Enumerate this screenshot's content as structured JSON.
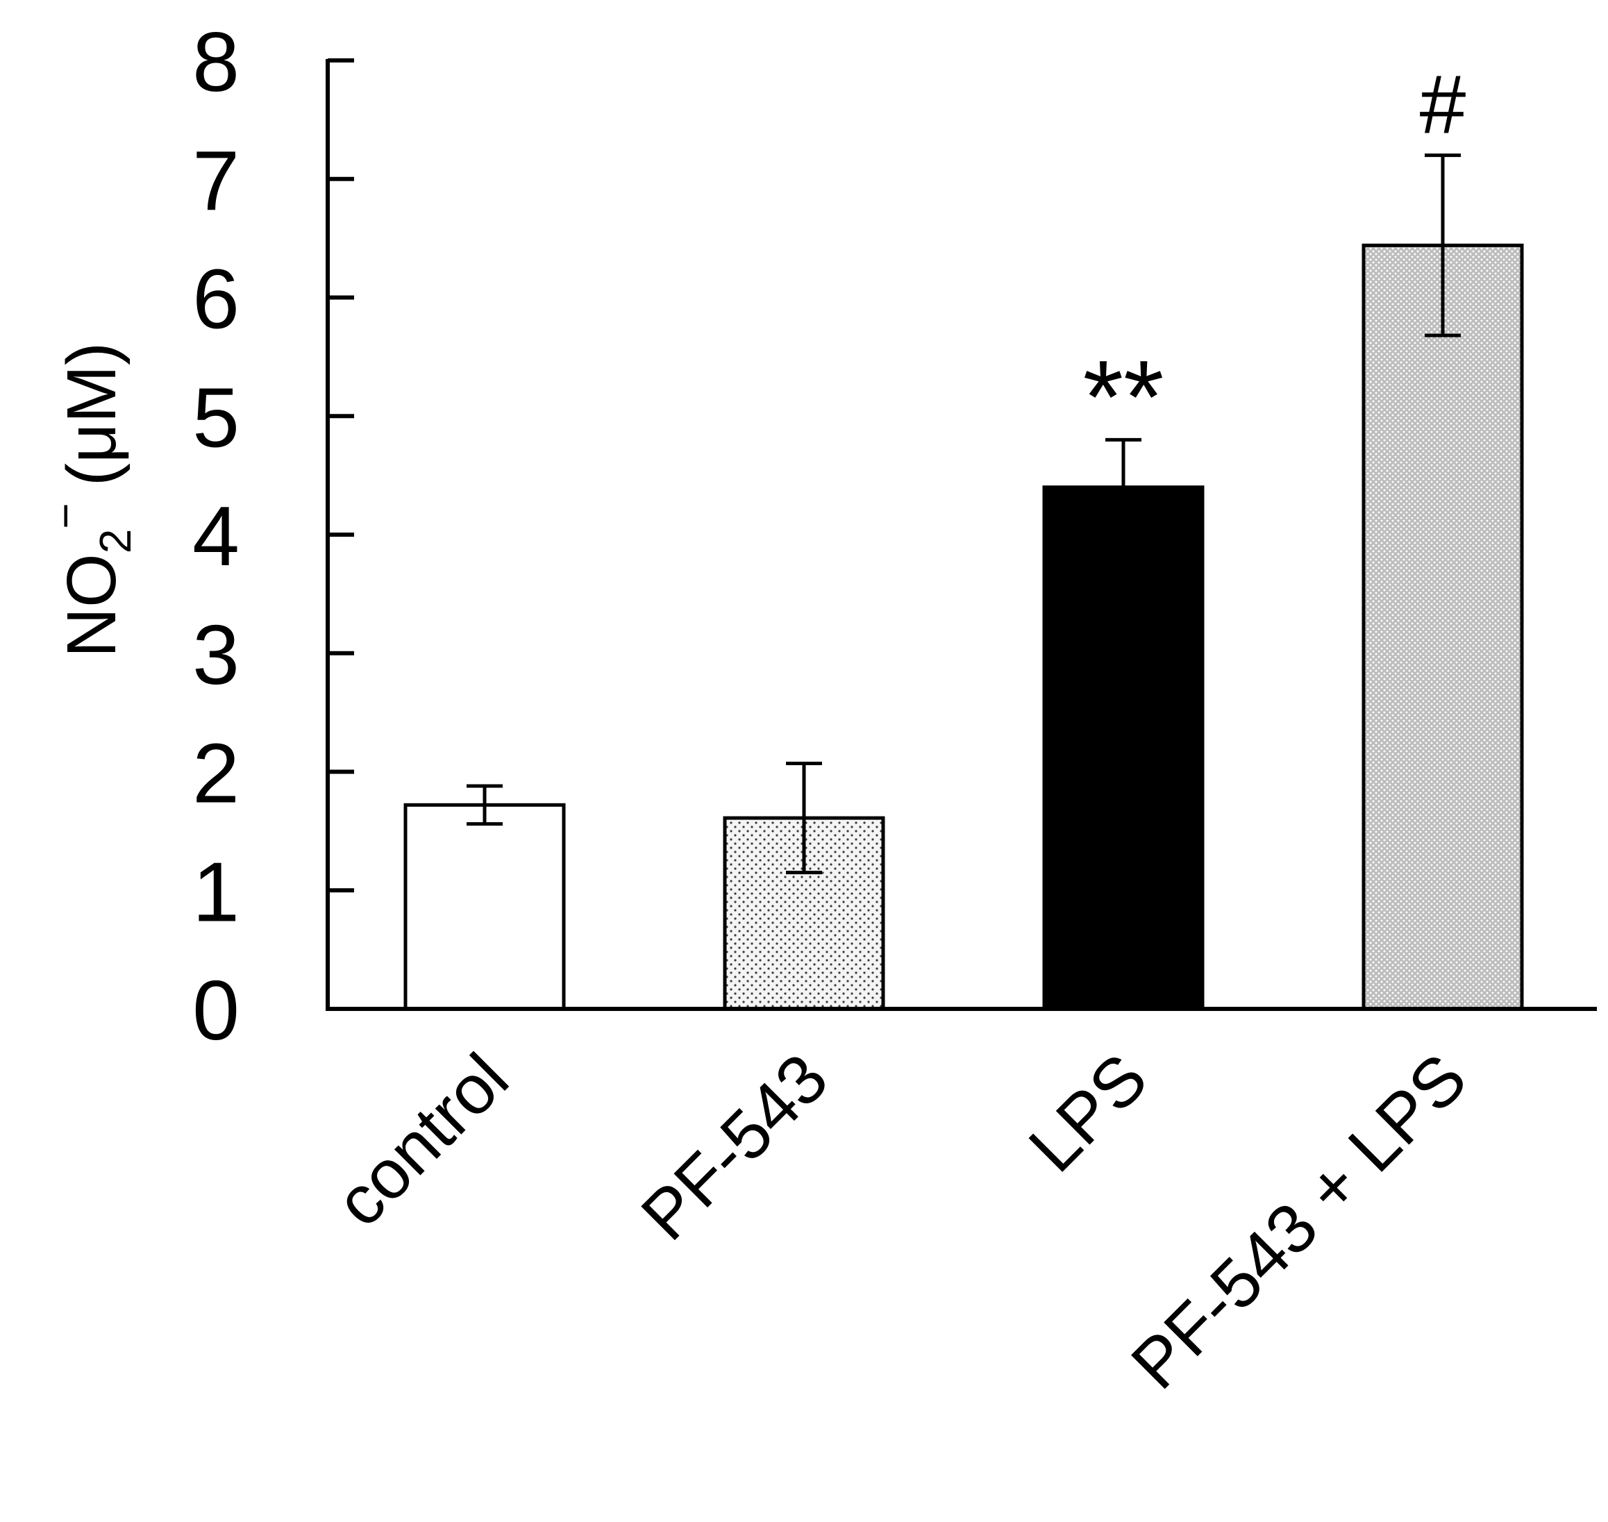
{
  "chart_data": {
    "type": "bar",
    "title": "",
    "xlabel": "",
    "ylabel": {
      "main": "NO",
      "subscript": "2",
      "superscript": "−",
      "unit": "(μM)"
    },
    "ylim": [
      0,
      8
    ],
    "yticks": [
      0,
      1,
      2,
      3,
      4,
      5,
      6,
      7,
      8
    ],
    "grid": false,
    "legend": "none",
    "categories": [
      "control",
      "PF-543",
      "LPS",
      "PF-543 + LPS"
    ],
    "values": [
      1.72,
      1.61,
      4.4,
      6.44
    ],
    "errors": [
      0.16,
      0.46,
      0.4,
      0.76
    ],
    "annotations": [
      "",
      "",
      "**",
      "#"
    ],
    "fills": [
      "white",
      "light-dots",
      "black",
      "dark-dots"
    ]
  },
  "colors": {
    "axis": "#000000",
    "bar_edge": "#000000",
    "black_bar": "#000000",
    "white_bar": "#ffffff",
    "light_dot_bg": "#f2f2f2",
    "dark_dot_bg": "#bdbdbd"
  }
}
